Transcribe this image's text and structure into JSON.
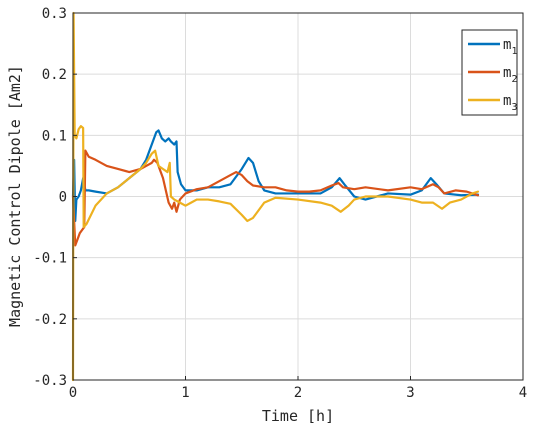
{
  "chart_data": {
    "type": "line",
    "title": "",
    "xlabel": "Time [h]",
    "ylabel": "Magnetic Control Dipole [Am2]",
    "xlim": [
      0,
      4
    ],
    "ylim": [
      -0.3,
      0.3
    ],
    "x_ticks": [
      "0",
      "1",
      "2",
      "3",
      "4"
    ],
    "y_ticks": [
      "-0.3",
      "-0.2",
      "-0.1",
      "0",
      "0.1",
      "0.2",
      "0.3"
    ],
    "grid": true,
    "legend_position": "top-right",
    "series": [
      {
        "name": "m",
        "name_sub": "1",
        "color": "#0072BD",
        "points": [
          [
            0,
            0
          ],
          [
            0.01,
            0.06
          ],
          [
            0.02,
            -0.04
          ],
          [
            0.03,
            -0.005
          ],
          [
            0.05,
            0
          ],
          [
            0.07,
            0.01
          ],
          [
            0.09,
            0.03
          ],
          [
            0.11,
            0.01
          ],
          [
            0.14,
            0.01
          ],
          [
            0.2,
            0.008
          ],
          [
            0.3,
            0.005
          ],
          [
            0.4,
            0.015
          ],
          [
            0.5,
            0.03
          ],
          [
            0.6,
            0.045
          ],
          [
            0.65,
            0.06
          ],
          [
            0.7,
            0.085
          ],
          [
            0.74,
            0.105
          ],
          [
            0.76,
            0.108
          ],
          [
            0.79,
            0.095
          ],
          [
            0.82,
            0.09
          ],
          [
            0.85,
            0.095
          ],
          [
            0.87,
            0.09
          ],
          [
            0.9,
            0.085
          ],
          [
            0.92,
            0.09
          ],
          [
            0.93,
            0.04
          ],
          [
            0.96,
            0.02
          ],
          [
            1.0,
            0.01
          ],
          [
            1.1,
            0.01
          ],
          [
            1.2,
            0.015
          ],
          [
            1.3,
            0.015
          ],
          [
            1.4,
            0.02
          ],
          [
            1.5,
            0.045
          ],
          [
            1.56,
            0.063
          ],
          [
            1.6,
            0.055
          ],
          [
            1.65,
            0.025
          ],
          [
            1.7,
            0.01
          ],
          [
            1.8,
            0.005
          ],
          [
            2.0,
            0.005
          ],
          [
            2.1,
            0.005
          ],
          [
            2.2,
            0.005
          ],
          [
            2.3,
            0.015
          ],
          [
            2.37,
            0.03
          ],
          [
            2.42,
            0.018
          ],
          [
            2.5,
            0
          ],
          [
            2.6,
            -0.005
          ],
          [
            2.8,
            0.005
          ],
          [
            3.0,
            0.003
          ],
          [
            3.1,
            0.01
          ],
          [
            3.18,
            0.03
          ],
          [
            3.23,
            0.02
          ],
          [
            3.3,
            0.005
          ],
          [
            3.45,
            0.002
          ],
          [
            3.6,
            0.003
          ]
        ]
      },
      {
        "name": "m",
        "name_sub": "2",
        "color": "#D95319",
        "points": [
          [
            0,
            0
          ],
          [
            0.01,
            -0.04
          ],
          [
            0.02,
            -0.08
          ],
          [
            0.04,
            -0.07
          ],
          [
            0.06,
            -0.06
          ],
          [
            0.08,
            -0.055
          ],
          [
            0.1,
            -0.05
          ],
          [
            0.11,
            0.075
          ],
          [
            0.14,
            0.065
          ],
          [
            0.2,
            0.06
          ],
          [
            0.3,
            0.05
          ],
          [
            0.4,
            0.045
          ],
          [
            0.5,
            0.04
          ],
          [
            0.6,
            0.045
          ],
          [
            0.65,
            0.05
          ],
          [
            0.7,
            0.055
          ],
          [
            0.72,
            0.06
          ],
          [
            0.75,
            0.055
          ],
          [
            0.8,
            0.03
          ],
          [
            0.85,
            -0.01
          ],
          [
            0.88,
            -0.02
          ],
          [
            0.9,
            -0.01
          ],
          [
            0.92,
            -0.025
          ],
          [
            0.95,
            -0.005
          ],
          [
            1.0,
            0.005
          ],
          [
            1.1,
            0.012
          ],
          [
            1.2,
            0.015
          ],
          [
            1.3,
            0.025
          ],
          [
            1.4,
            0.035
          ],
          [
            1.45,
            0.04
          ],
          [
            1.5,
            0.035
          ],
          [
            1.55,
            0.025
          ],
          [
            1.6,
            0.018
          ],
          [
            1.7,
            0.015
          ],
          [
            1.8,
            0.015
          ],
          [
            1.9,
            0.01
          ],
          [
            2.0,
            0.008
          ],
          [
            2.1,
            0.008
          ],
          [
            2.2,
            0.01
          ],
          [
            2.3,
            0.018
          ],
          [
            2.36,
            0.022
          ],
          [
            2.4,
            0.015
          ],
          [
            2.5,
            0.012
          ],
          [
            2.6,
            0.015
          ],
          [
            2.8,
            0.01
          ],
          [
            3.0,
            0.015
          ],
          [
            3.1,
            0.012
          ],
          [
            3.2,
            0.02
          ],
          [
            3.25,
            0.015
          ],
          [
            3.3,
            0.005
          ],
          [
            3.4,
            0.01
          ],
          [
            3.5,
            0.008
          ],
          [
            3.6,
            0.002
          ]
        ]
      },
      {
        "name": "m",
        "name_sub": "3",
        "color": "#EDB120",
        "points": [
          [
            0,
            -0.3
          ],
          [
            0.005,
            0.3
          ],
          [
            0.01,
            0.2
          ],
          [
            0.015,
            0.1
          ],
          [
            0.03,
            0.095
          ],
          [
            0.05,
            0.11
          ],
          [
            0.07,
            0.115
          ],
          [
            0.09,
            0.112
          ],
          [
            0.095,
            -0.05
          ],
          [
            0.12,
            -0.045
          ],
          [
            0.2,
            -0.015
          ],
          [
            0.3,
            0.005
          ],
          [
            0.4,
            0.015
          ],
          [
            0.5,
            0.03
          ],
          [
            0.6,
            0.045
          ],
          [
            0.65,
            0.055
          ],
          [
            0.7,
            0.07
          ],
          [
            0.73,
            0.075
          ],
          [
            0.76,
            0.05
          ],
          [
            0.8,
            0.045
          ],
          [
            0.84,
            0.04
          ],
          [
            0.86,
            0.055
          ],
          [
            0.87,
            0.0
          ],
          [
            0.9,
            -0.005
          ],
          [
            0.95,
            -0.01
          ],
          [
            1.0,
            -0.015
          ],
          [
            1.05,
            -0.01
          ],
          [
            1.1,
            -0.005
          ],
          [
            1.2,
            -0.005
          ],
          [
            1.3,
            -0.008
          ],
          [
            1.4,
            -0.012
          ],
          [
            1.5,
            -0.03
          ],
          [
            1.55,
            -0.04
          ],
          [
            1.6,
            -0.035
          ],
          [
            1.7,
            -0.01
          ],
          [
            1.8,
            -0.002
          ],
          [
            2.0,
            -0.005
          ],
          [
            2.2,
            -0.01
          ],
          [
            2.3,
            -0.015
          ],
          [
            2.38,
            -0.025
          ],
          [
            2.45,
            -0.015
          ],
          [
            2.5,
            -0.005
          ],
          [
            2.6,
            0
          ],
          [
            2.8,
            0
          ],
          [
            3.0,
            -0.005
          ],
          [
            3.1,
            -0.01
          ],
          [
            3.2,
            -0.01
          ],
          [
            3.28,
            -0.02
          ],
          [
            3.35,
            -0.01
          ],
          [
            3.45,
            -0.005
          ],
          [
            3.55,
            0.005
          ],
          [
            3.6,
            0.008
          ]
        ]
      }
    ]
  }
}
